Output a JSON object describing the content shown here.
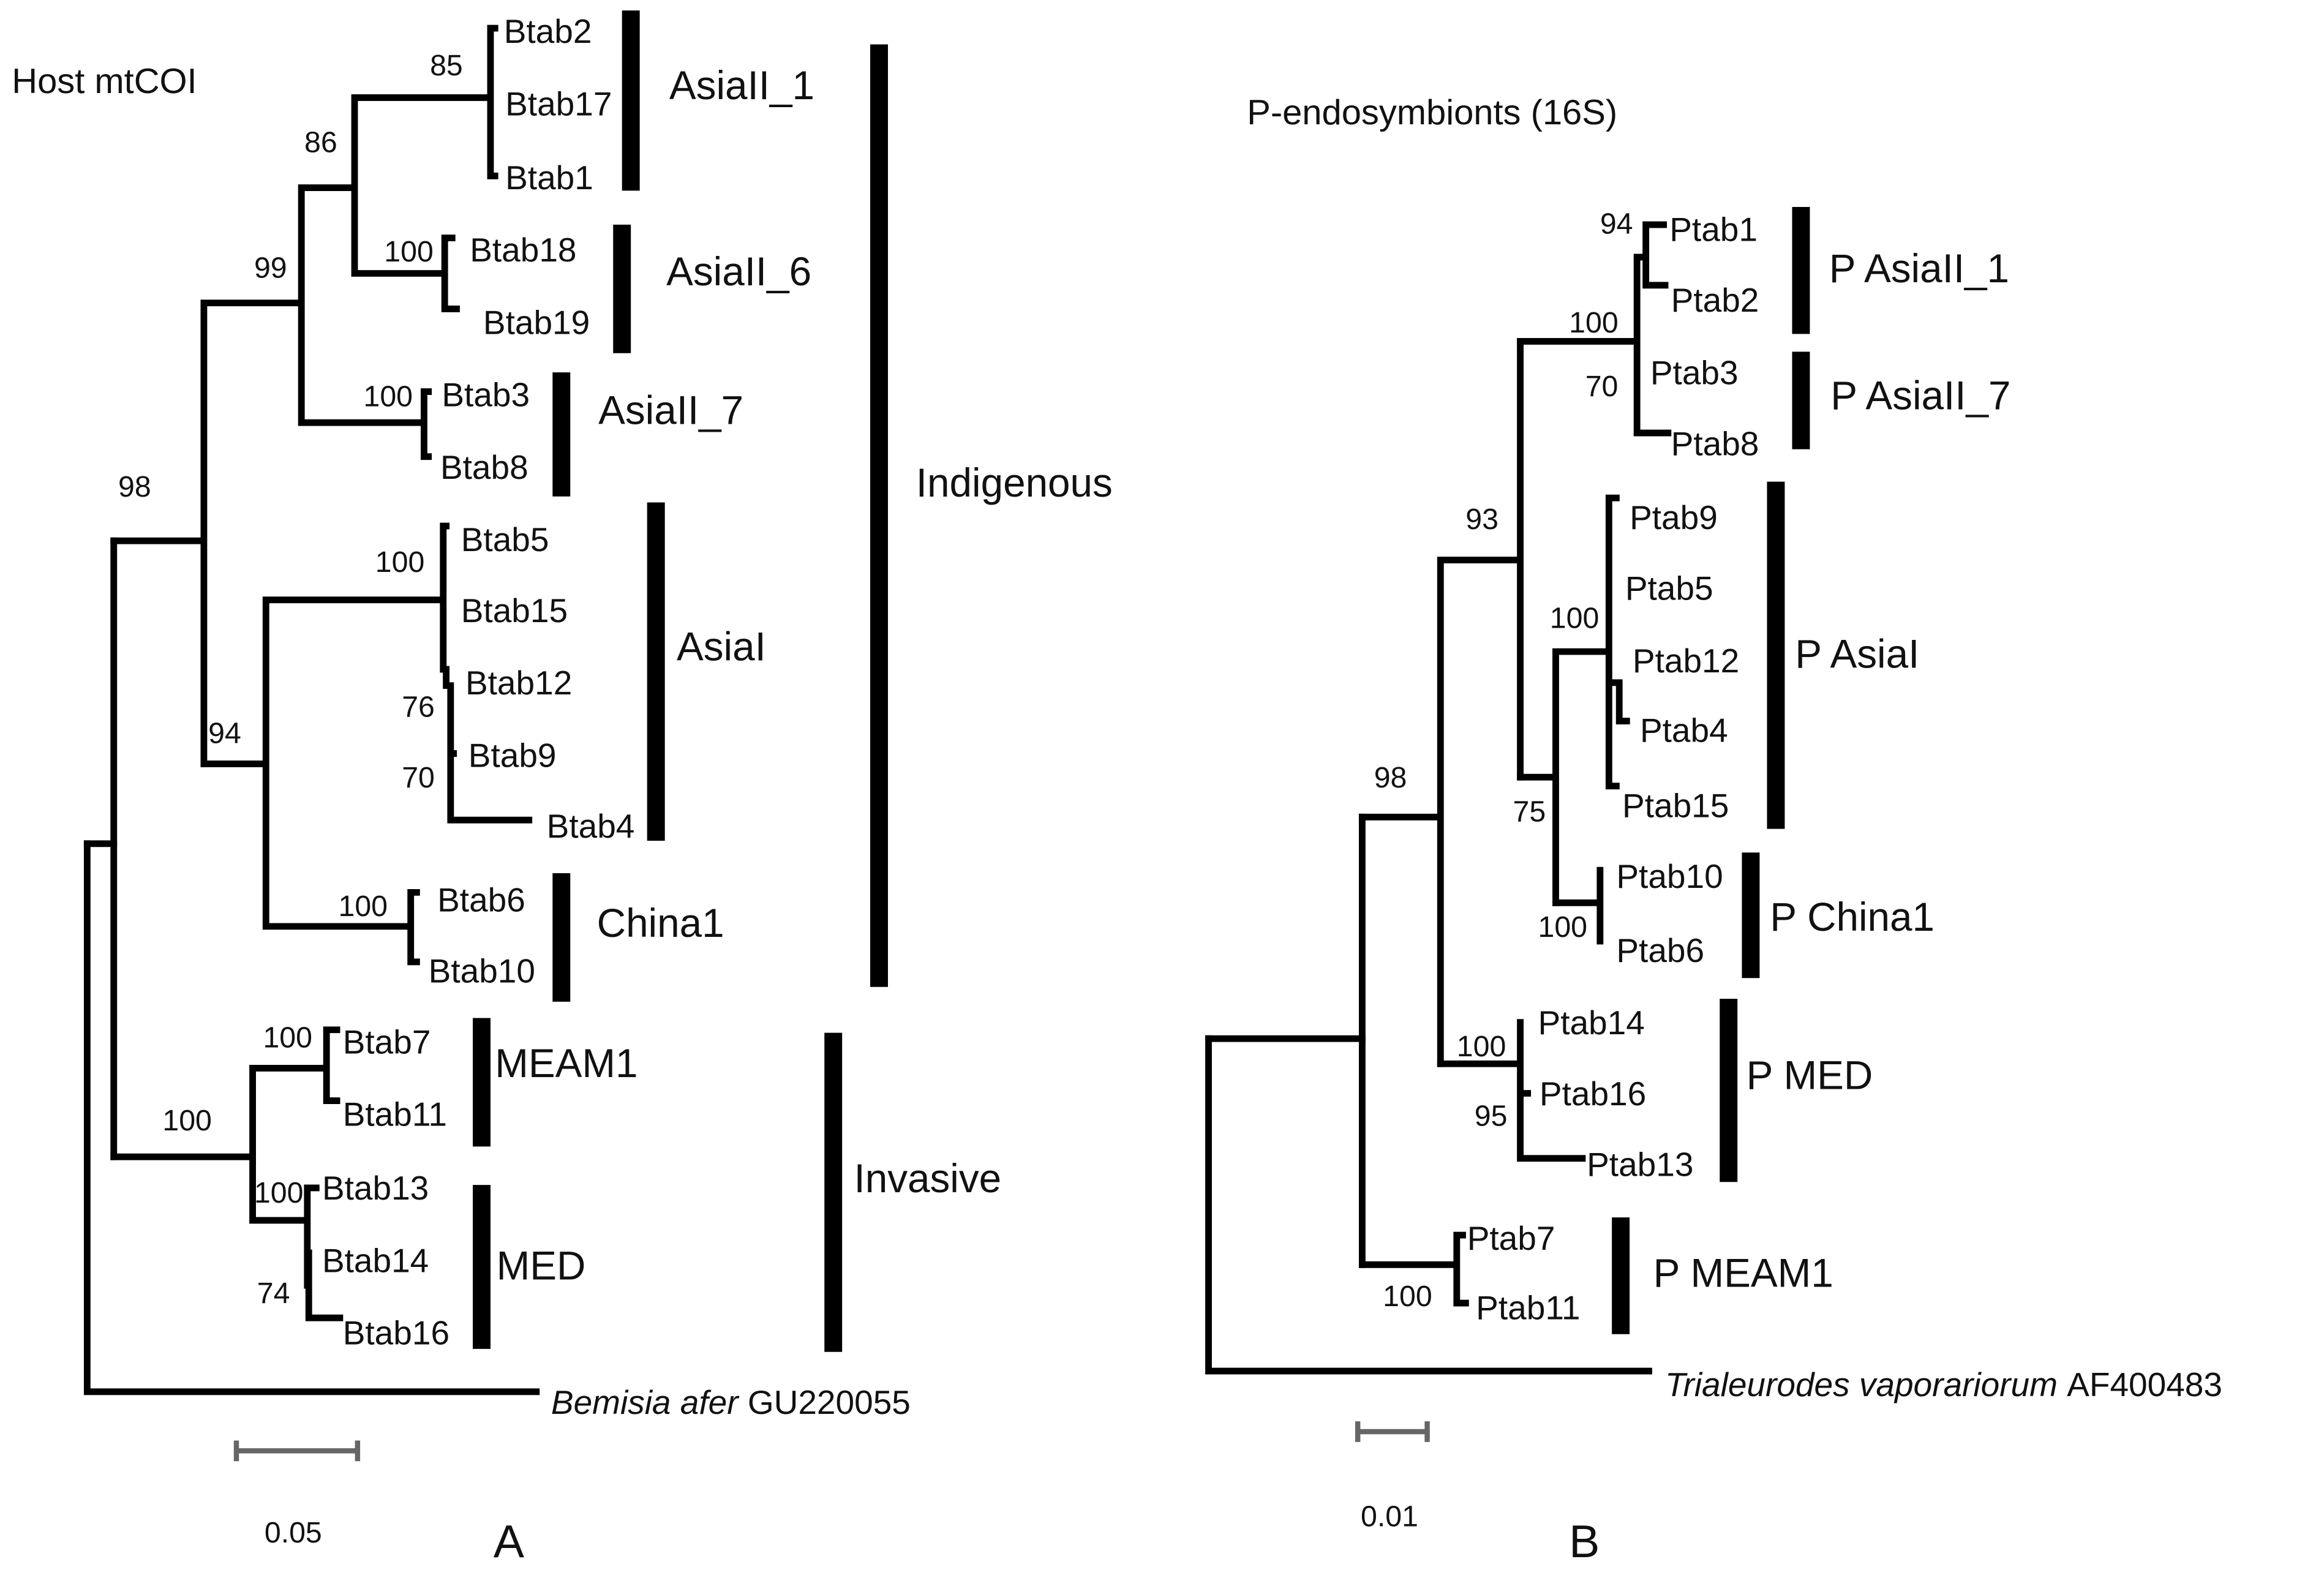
{
  "panelA": {
    "title": "Host mtCOI",
    "panel_letter": "A",
    "scale_label": "0.05",
    "leaves": [
      "Btab2",
      "Btab17",
      "Btab1",
      "Btab18",
      "Btab19",
      "Btab3",
      "Btab8",
      "Btab5",
      "Btab15",
      "Btab12",
      "Btab9",
      "Btab4",
      "Btab6",
      "Btab10",
      "Btab7",
      "Btab11",
      "Btab13",
      "Btab14",
      "Btab16"
    ],
    "outgroup": {
      "species": "Bemisia afer",
      "accession": "GU220055"
    },
    "bootstrap": [
      "85",
      "86",
      "99",
      "100",
      "100",
      "98",
      "100",
      "76",
      "70",
      "94",
      "100",
      "100",
      "100",
      "100",
      "74"
    ],
    "clades": [
      "AsiaII_1",
      "AsiaII_6",
      "AsiaII_7",
      "AsiaI",
      "China1",
      "MEAM1",
      "MED"
    ],
    "groups": [
      "Indigenous",
      "Invasive"
    ]
  },
  "panelB": {
    "title": "P-endosymbionts (16S)",
    "panel_letter": "B",
    "scale_label": "0.01",
    "leaves": [
      "Ptab1",
      "Ptab2",
      "Ptab3",
      "Ptab8",
      "Ptab9",
      "Ptab5",
      "Ptab12",
      "Ptab4",
      "Ptab15",
      "Ptab10",
      "Ptab6",
      "Ptab14",
      "Ptab16",
      "Ptab13",
      "Ptab7",
      "Ptab11"
    ],
    "outgroup": {
      "species": "Trialeurodes vaporariorum",
      "accession": "AF400483"
    },
    "bootstrap": [
      "94",
      "100",
      "70",
      "93",
      "100",
      "75",
      "100",
      "98",
      "100",
      "95",
      "100"
    ],
    "clades": [
      "P AsiaII_1",
      "P AsiaII_7",
      "P AsiaI",
      "P China1",
      "P MED",
      "P MEAM1"
    ]
  }
}
